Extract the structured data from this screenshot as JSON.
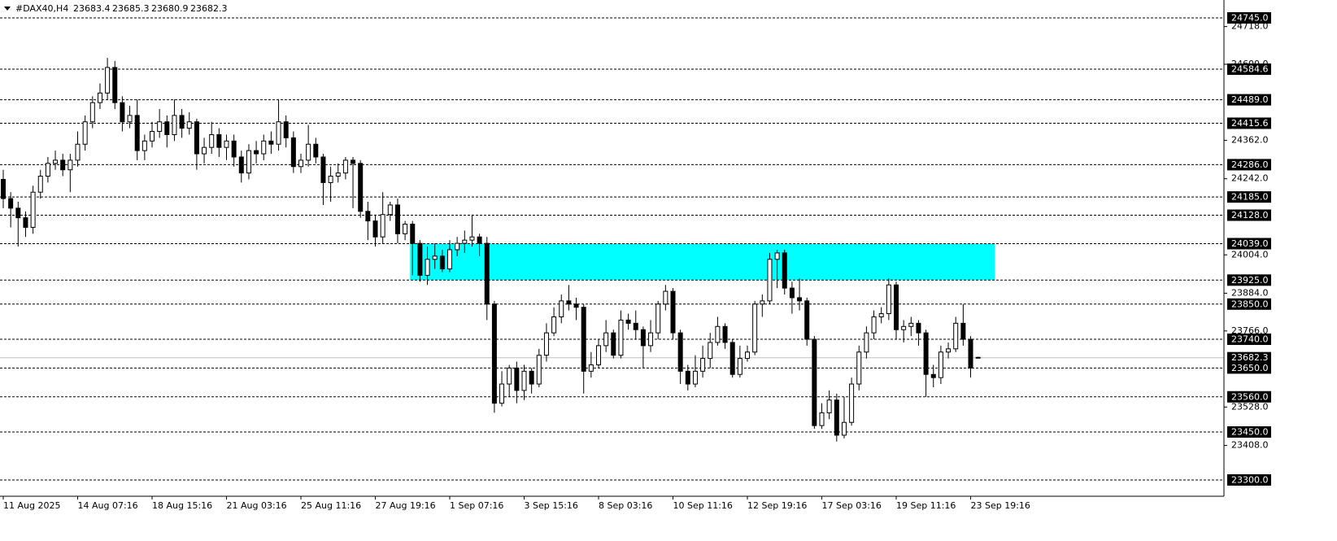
{
  "chart_data": {
    "type": "candlestick",
    "header": {
      "symbol": "#DAX40,H4",
      "ohlc": [
        23683.4,
        23685.3,
        23680.9,
        23682.3
      ]
    },
    "categories": [
      "11 Aug 2025",
      null,
      null,
      null,
      null,
      null,
      null,
      null,
      null,
      null,
      "14 Aug 07:16",
      null,
      null,
      null,
      null,
      null,
      null,
      null,
      null,
      null,
      "18 Aug 15:16",
      null,
      null,
      null,
      null,
      null,
      null,
      null,
      null,
      null,
      "21 Aug 03:16",
      null,
      null,
      null,
      null,
      null,
      null,
      null,
      null,
      null,
      "25 Aug 11:16",
      null,
      null,
      null,
      null,
      null,
      null,
      null,
      null,
      null,
      "27 Aug 19:16",
      null,
      null,
      null,
      null,
      null,
      null,
      null,
      null,
      null,
      "1 Sep 07:16",
      null,
      null,
      null,
      null,
      null,
      null,
      null,
      null,
      null,
      "3 Sep 15:16",
      null,
      null,
      null,
      null,
      null,
      null,
      null,
      null,
      null,
      "8 Sep 03:16",
      null,
      null,
      null,
      null,
      null,
      null,
      null,
      null,
      null,
      "10 Sep 11:16",
      null,
      null,
      null,
      null,
      null,
      null,
      null,
      null,
      null,
      "12 Sep 19:16",
      null,
      null,
      null,
      null,
      null,
      null,
      null,
      null,
      null,
      "17 Sep 03:16",
      null,
      null,
      null,
      null,
      null,
      null,
      null,
      null,
      null,
      "19 Sep 11:16",
      null,
      null,
      null,
      null,
      null,
      null,
      null,
      null,
      null,
      "23 Sep 19:16",
      null
    ],
    "open": [
      24240,
      24180,
      24150,
      24120,
      24090,
      24200,
      24250,
      24290,
      24300,
      24270,
      24300,
      24350,
      24420,
      24480,
      24510,
      24590,
      24480,
      24420,
      24440,
      24330,
      24360,
      24390,
      24420,
      24380,
      24440,
      24400,
      24420,
      24320,
      24340,
      24380,
      24340,
      24360,
      24310,
      24260,
      24330,
      24320,
      24360,
      24350,
      24420,
      24370,
      24280,
      24300,
      24350,
      24310,
      24230,
      24250,
      24260,
      24300,
      24290,
      24140,
      24110,
      24060,
      24130,
      24160,
      24070,
      24100,
      24040,
      23940,
      23990,
      24000,
      23960,
      24020,
      24040,
      24050,
      24060,
      24040,
      23850,
      23540,
      23600,
      23650,
      23580,
      23640,
      23600,
      23690,
      23760,
      23810,
      23860,
      23850,
      23840,
      23640,
      23660,
      23720,
      23760,
      23690,
      23800,
      23790,
      23770,
      23720,
      23760,
      23850,
      23890,
      23760,
      23640,
      23600,
      23640,
      23680,
      23730,
      23780,
      23730,
      23630,
      23680,
      23700,
      23850,
      23860,
      23990,
      24010,
      23900,
      23870,
      23860,
      23740,
      23470,
      23510,
      23550,
      23440,
      23480,
      23600,
      23700,
      23760,
      23810,
      23820,
      23910,
      23770,
      23780,
      23790,
      23760,
      23630,
      23620,
      23700,
      23710,
      23790,
      23740,
      23683.4
    ],
    "high": [
      24270,
      24200,
      24170,
      24140,
      24220,
      24270,
      24310,
      24330,
      24320,
      24320,
      24390,
      24440,
      24500,
      24540,
      24620,
      24610,
      24500,
      24470,
      24490,
      24380,
      24420,
      24460,
      24440,
      24490,
      24460,
      24450,
      24430,
      24370,
      24420,
      24400,
      24380,
      24380,
      24330,
      24350,
      24360,
      24380,
      24390,
      24490,
      24440,
      24390,
      24320,
      24410,
      24370,
      24320,
      24280,
      24290,
      24310,
      24310,
      24300,
      24170,
      24130,
      24200,
      24170,
      24180,
      24110,
      24110,
      24050,
      24030,
      24040,
      24020,
      24050,
      24060,
      24080,
      24130,
      24070,
      24060,
      23860,
      23640,
      23660,
      23670,
      23660,
      23650,
      23710,
      23790,
      23840,
      23880,
      23910,
      23870,
      23850,
      23700,
      23740,
      23800,
      23770,
      23830,
      23820,
      23830,
      23780,
      23800,
      23860,
      23910,
      23900,
      23770,
      23660,
      23690,
      23720,
      23760,
      23810,
      23790,
      23740,
      23720,
      23720,
      23860,
      23880,
      24010,
      24020,
      24020,
      23920,
      23930,
      23870,
      23750,
      23540,
      23580,
      23570,
      23560,
      23620,
      23720,
      23780,
      23830,
      23840,
      23930,
      23920,
      23800,
      23810,
      23800,
      23770,
      23660,
      23720,
      23730,
      23810,
      23850,
      23750,
      23685.3
    ],
    "low": [
      24150,
      24090,
      24030,
      24060,
      24070,
      24180,
      24230,
      24270,
      24250,
      24200,
      24280,
      24330,
      24400,
      24460,
      24490,
      24460,
      24390,
      24400,
      24300,
      24300,
      24340,
      24370,
      24340,
      24360,
      24370,
      24380,
      24270,
      24290,
      24320,
      24310,
      24300,
      24280,
      24230,
      24240,
      24290,
      24300,
      24320,
      24330,
      24340,
      24260,
      24260,
      24280,
      24290,
      24160,
      24170,
      24230,
      24240,
      24150,
      24120,
      24050,
      24030,
      24040,
      24110,
      24040,
      24050,
      23940,
      23920,
      23910,
      23960,
      23950,
      23950,
      24000,
      24010,
      24030,
      24000,
      23800,
      23510,
      23530,
      23560,
      23540,
      23550,
      23570,
      23590,
      23670,
      23750,
      23790,
      23830,
      23800,
      23570,
      23620,
      23650,
      23700,
      23680,
      23680,
      23770,
      23740,
      23650,
      23700,
      23740,
      23830,
      23740,
      23600,
      23580,
      23590,
      23620,
      23650,
      23720,
      23710,
      23620,
      23620,
      23670,
      23690,
      23810,
      23850,
      23900,
      23880,
      23820,
      23830,
      23720,
      23460,
      23460,
      23490,
      23420,
      23430,
      23470,
      23580,
      23680,
      23740,
      23790,
      23800,
      23740,
      23730,
      23750,
      23720,
      23560,
      23590,
      23600,
      23680,
      23700,
      23720,
      23620,
      23680.9
    ],
    "close": [
      24180,
      24150,
      24120,
      24090,
      24200,
      24250,
      24290,
      24300,
      24270,
      24300,
      24350,
      24420,
      24480,
      24510,
      24590,
      24480,
      24420,
      24440,
      24330,
      24360,
      24390,
      24420,
      24380,
      24440,
      24400,
      24420,
      24320,
      24340,
      24380,
      24340,
      24360,
      24310,
      24260,
      24330,
      24320,
      24360,
      24350,
      24420,
      24370,
      24280,
      24300,
      24350,
      24310,
      24230,
      24250,
      24260,
      24300,
      24290,
      24140,
      24110,
      24060,
      24130,
      24160,
      24070,
      24100,
      24040,
      23940,
      23990,
      24000,
      23960,
      24020,
      24040,
      24050,
      24060,
      24040,
      23850,
      23540,
      23600,
      23650,
      23580,
      23640,
      23600,
      23690,
      23760,
      23810,
      23860,
      23850,
      23840,
      23640,
      23660,
      23720,
      23760,
      23690,
      23800,
      23790,
      23770,
      23720,
      23760,
      23850,
      23890,
      23760,
      23640,
      23600,
      23640,
      23680,
      23730,
      23780,
      23730,
      23630,
      23680,
      23700,
      23850,
      23860,
      23990,
      24010,
      23900,
      23870,
      23860,
      23740,
      23470,
      23510,
      23550,
      23440,
      23480,
      23600,
      23700,
      23760,
      23810,
      23820,
      23910,
      23770,
      23780,
      23790,
      23760,
      23630,
      23620,
      23700,
      23710,
      23790,
      23740,
      23650,
      23682.3
    ],
    "ylim": [
      23249,
      24801
    ],
    "yticks": [
      {
        "value": 24718,
        "label": "24718.0"
      },
      {
        "value": 24600,
        "label": "24600.0"
      },
      {
        "value": 24362,
        "label": "24362.0"
      },
      {
        "value": 24242,
        "label": "24242.0"
      },
      {
        "value": 24004,
        "label": "24004.0"
      },
      {
        "value": 23884,
        "label": "23884.0"
      },
      {
        "value": 23766,
        "label": "23766.0"
      },
      {
        "value": 23528,
        "label": "23528.0"
      },
      {
        "value": 23408,
        "label": "23408.0"
      }
    ],
    "levels": [
      {
        "value": 24745,
        "label": "24745.0"
      },
      24584.6,
      {
        "value": 24489,
        "label": "24489.0"
      },
      24415.6,
      {
        "value": 24286,
        "label": "24286.0"
      },
      {
        "value": 24185,
        "label": "24185.0"
      },
      {
        "value": 24128,
        "label": "24128.0"
      },
      {
        "value": 24039,
        "label": "24039.0"
      },
      {
        "value": 23925,
        "label": "23925.0"
      },
      {
        "value": 23850,
        "label": "23850.0"
      },
      {
        "value": 23740,
        "label": "23740.0"
      },
      {
        "value": 23650,
        "label": "23650.0"
      },
      {
        "value": 23560,
        "label": "23560.0"
      },
      {
        "value": 23450,
        "label": "23450.0"
      },
      {
        "value": 23300,
        "label": "23300.0"
      }
    ],
    "current_price": 23682.3,
    "zone": {
      "high": 24039,
      "low": 23925,
      "color": "#00ffff"
    },
    "colors": {
      "bull": "#ffffff",
      "bear": "#000000",
      "outline": "#000000"
    }
  }
}
